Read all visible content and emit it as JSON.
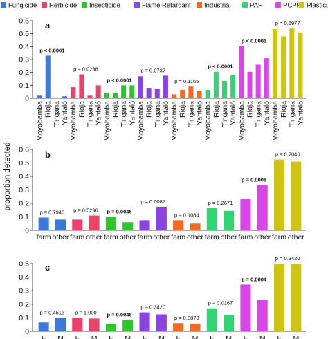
{
  "legend": {
    "items": [
      {
        "label": "Fungicide",
        "color": "#3b78d8"
      },
      {
        "label": "Herbicide",
        "color": "#e8436a"
      },
      {
        "label": "Insecticide",
        "color": "#2cc52c"
      },
      {
        "label": "Flame Retardant",
        "color": "#8a45e0"
      },
      {
        "label": "Industrial",
        "color": "#f26a24"
      },
      {
        "label": "PAH",
        "color": "#34d474"
      },
      {
        "label": "PCPP",
        "color": "#d846e8"
      },
      {
        "label": "Plasticizer",
        "color": "#cfc316"
      }
    ]
  },
  "ylabel": "proportion detected",
  "chart_data": [
    {
      "type": "bar",
      "panel": "a",
      "ylim": [
        0,
        0.6
      ],
      "yticks": [
        "0",
        "0.1",
        "0.2",
        "0.3",
        "0.4",
        "0.5",
        "0.6"
      ],
      "ytick_values": [
        0,
        0.1,
        0.2,
        0.3,
        0.4,
        0.5,
        0.6
      ],
      "groups": [
        {
          "name": "Fungicide",
          "categories": [
            "Moyobamba",
            "Rioja",
            "Tingana",
            "Yantaló"
          ],
          "values": [
            0.02,
            0.33,
            0.0,
            0.015
          ],
          "pvalue": "p < 0.0001",
          "bold": true
        },
        {
          "name": "Herbicide",
          "categories": [
            "Moyobamba",
            "Rioja",
            "Tingana",
            "Yantaló"
          ],
          "values": [
            0.085,
            0.185,
            0.02,
            0.1
          ],
          "pvalue": "p = 0.0236",
          "bold": false
        },
        {
          "name": "Insecticide",
          "categories": [
            "Moyobamba",
            "Rioja",
            "Tingana",
            "Yantaló"
          ],
          "values": [
            0.04,
            0.04,
            0.1,
            0.1
          ],
          "pvalue": "p < 0.0001",
          "bold": true
        },
        {
          "name": "Flame Retardant",
          "categories": [
            "Moyobamba",
            "Rioja",
            "Tingana",
            "Yantaló"
          ],
          "values": [
            0.17,
            0.08,
            0.075,
            0.175
          ],
          "pvalue": "p = 0.0737",
          "bold": false
        },
        {
          "name": "Industrial",
          "categories": [
            "Moyobamba",
            "Rioja",
            "Tingana",
            "Yantaló"
          ],
          "values": [
            0.03,
            0.065,
            0.09,
            0.055
          ],
          "pvalue": "p = 0.1165",
          "bold": false
        },
        {
          "name": "PAH",
          "categories": [
            "Moyobamba",
            "Rioja",
            "Tingana",
            "Yantaló"
          ],
          "values": [
            0.065,
            0.205,
            0.135,
            0.18
          ],
          "pvalue": "p < 0.0001",
          "bold": true
        },
        {
          "name": "PCPP",
          "categories": [
            "Moyobamba",
            "Rioja",
            "Tingana",
            "Yantaló"
          ],
          "values": [
            0.405,
            0.205,
            0.26,
            0.31
          ],
          "pvalue": "p < 0.0001",
          "bold": true
        },
        {
          "name": "Plasticizer",
          "categories": [
            "Moyobamba",
            "Rioja",
            "Tingana",
            "Yantaló"
          ],
          "values": [
            0.535,
            0.48,
            0.54,
            0.51
          ],
          "pvalue": "p = 0.6977",
          "bold": false
        }
      ]
    },
    {
      "type": "bar",
      "panel": "b",
      "ylim": [
        0,
        0.6
      ],
      "yticks": [
        "0",
        "0.1",
        "0.2",
        "0.3",
        "0.4",
        "0.5",
        "0.6"
      ],
      "ytick_values": [
        0,
        0.1,
        0.2,
        0.3,
        0.4,
        0.5,
        0.6
      ],
      "groups": [
        {
          "name": "Fungicide",
          "categories": [
            "farm",
            "other"
          ],
          "values": [
            0.095,
            0.08
          ],
          "pvalue": "p = 0.7940",
          "bold": false
        },
        {
          "name": "Herbicide",
          "categories": [
            "farm",
            "other"
          ],
          "values": [
            0.08,
            0.11
          ],
          "pvalue": "p = 0.5296",
          "bold": false
        },
        {
          "name": "Insecticide",
          "categories": [
            "farm",
            "other"
          ],
          "values": [
            0.1,
            0.06
          ],
          "pvalue": "p = 0.0046",
          "bold": true
        },
        {
          "name": "Flame Retardant",
          "categories": [
            "farm",
            "other"
          ],
          "values": [
            0.075,
            0.175
          ],
          "pvalue": "p = 0.0087",
          "bold": false
        },
        {
          "name": "Industrial",
          "categories": [
            "farm",
            "other"
          ],
          "values": [
            0.075,
            0.05
          ],
          "pvalue": "p = 0.1084",
          "bold": false
        },
        {
          "name": "PAH",
          "categories": [
            "farm",
            "other"
          ],
          "values": [
            0.165,
            0.145
          ],
          "pvalue": "p = 0.2671",
          "bold": false
        },
        {
          "name": "PCPP",
          "categories": [
            "farm",
            "other"
          ],
          "values": [
            0.235,
            0.335
          ],
          "pvalue": "p = 0.0008",
          "bold": true
        },
        {
          "name": "Plasticizer",
          "categories": [
            "farm",
            "other"
          ],
          "values": [
            0.525,
            0.51
          ],
          "pvalue": "p = 0.7046",
          "bold": false
        }
      ]
    },
    {
      "type": "bar",
      "panel": "c",
      "ylim": [
        0,
        0.5
      ],
      "yticks": [
        "0",
        "0.1",
        "0.2",
        "0.3",
        "0.4",
        "0.5"
      ],
      "ytick_values": [
        0,
        0.1,
        0.2,
        0.3,
        0.4,
        0.5
      ],
      "groups": [
        {
          "name": "Fungicide",
          "categories": [
            "F",
            "M"
          ],
          "values": [
            0.065,
            0.1
          ],
          "pvalue": "p = 0.4513",
          "bold": false
        },
        {
          "name": "Herbicide",
          "categories": [
            "F",
            "M"
          ],
          "values": [
            0.1,
            0.095
          ],
          "pvalue": "p = 1.000",
          "bold": false
        },
        {
          "name": "Insecticide",
          "categories": [
            "F",
            "M"
          ],
          "values": [
            0.055,
            0.085
          ],
          "pvalue": "p = 0.0046",
          "bold": true
        },
        {
          "name": "Flame Retardant",
          "categories": [
            "F",
            "M"
          ],
          "values": [
            0.14,
            0.125
          ],
          "pvalue": "p = 0.3420",
          "bold": false
        },
        {
          "name": "Industrial",
          "categories": [
            "F",
            "M"
          ],
          "values": [
            0.06,
            0.055
          ],
          "pvalue": "p = 0.8878",
          "bold": false
        },
        {
          "name": "PAH",
          "categories": [
            "F",
            "M"
          ],
          "values": [
            0.17,
            0.12
          ],
          "pvalue": "p = 0.0167",
          "bold": false
        },
        {
          "name": "PCPP",
          "categories": [
            "F",
            "M"
          ],
          "values": [
            0.345,
            0.23
          ],
          "pvalue": "p = 0.0004",
          "bold": true
        },
        {
          "name": "Plasticizer",
          "categories": [
            "F",
            "M"
          ],
          "values": [
            0.5,
            0.5
          ],
          "pvalue": "p = 0.3420",
          "bold": false
        }
      ]
    }
  ]
}
